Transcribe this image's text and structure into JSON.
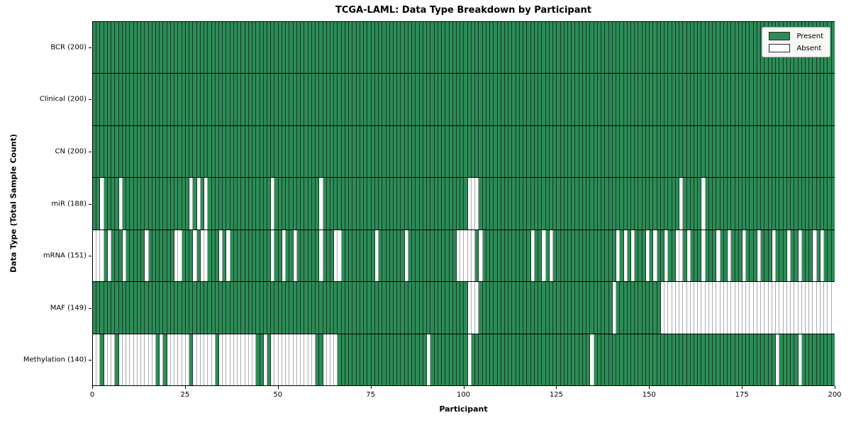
{
  "chart_data": {
    "type": "heatmap",
    "title": "TCGA-LAML: Data Type Breakdown by Participant",
    "xlabel": "Participant",
    "ylabel": "Data Type (Total Sample Count)",
    "x_range": [
      0,
      200
    ],
    "x_ticks": [
      0,
      25,
      50,
      75,
      100,
      125,
      150,
      175,
      200
    ],
    "n_participants": 200,
    "legend_position": "upper right",
    "colors": {
      "present": "#2e8b57",
      "present_edge": "#0b2a16",
      "absent": "#ffffff",
      "absent_edge": "#ababab",
      "frame": "#000000",
      "legend_bg": "#f7f7f5"
    },
    "legend": [
      {
        "label": "Present",
        "color": "#2e8b57"
      },
      {
        "label": "Absent",
        "color": "#ffffff"
      }
    ],
    "rows": [
      {
        "label": "BCR (200)",
        "present_count": 200,
        "absent": []
      },
      {
        "label": "Clinical (200)",
        "present_count": 200,
        "absent": []
      },
      {
        "label": "CN (200)",
        "present_count": 200,
        "absent": []
      },
      {
        "label": "miR (188)",
        "present_count": 188,
        "absent": [
          2,
          7,
          26,
          28,
          30,
          48,
          61,
          101,
          102,
          103,
          158,
          164
        ]
      },
      {
        "label": "mRNA (151)",
        "present_count": 151,
        "absent": [
          0,
          1,
          2,
          4,
          8,
          14,
          22,
          23,
          27,
          29,
          30,
          34,
          36,
          48,
          51,
          54,
          61,
          65,
          66,
          76,
          84,
          98,
          99,
          100,
          101,
          102,
          104,
          118,
          121,
          123,
          141,
          143,
          145,
          149,
          151,
          154,
          157,
          158,
          160,
          164,
          168,
          171,
          175,
          179,
          183,
          187,
          190,
          194,
          196
        ]
      },
      {
        "label": "MAF (149)",
        "present_count": 149,
        "absent": [
          101,
          102,
          103,
          140,
          153,
          154,
          155,
          156,
          157,
          158,
          159,
          160,
          161,
          162,
          163,
          164,
          165,
          166,
          167,
          168,
          169,
          170,
          171,
          172,
          173,
          174,
          175,
          176,
          177,
          178,
          179,
          180,
          181,
          182,
          183,
          184,
          185,
          186,
          187,
          188,
          189,
          190,
          191,
          192,
          193,
          194,
          195,
          196,
          197,
          198,
          199
        ]
      },
      {
        "label": "Methylation (140)",
        "present_count": 140,
        "absent": [
          0,
          1,
          3,
          4,
          5,
          7,
          8,
          9,
          10,
          11,
          12,
          13,
          14,
          15,
          16,
          18,
          20,
          21,
          22,
          23,
          24,
          25,
          27,
          28,
          29,
          30,
          31,
          32,
          34,
          35,
          36,
          37,
          38,
          39,
          40,
          41,
          42,
          43,
          46,
          48,
          49,
          50,
          51,
          52,
          53,
          54,
          55,
          56,
          57,
          58,
          59,
          62,
          63,
          64,
          65,
          90,
          101,
          134,
          184,
          190
        ]
      }
    ]
  }
}
